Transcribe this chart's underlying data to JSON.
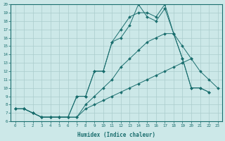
{
  "xlabel": "Humidex (Indice chaleur)",
  "bg_color": "#cce8e8",
  "line_color": "#1a6e6e",
  "grid_color": "#aacccc",
  "xlim": [
    -0.5,
    23.5
  ],
  "ylim": [
    6,
    20
  ],
  "xticks": [
    0,
    1,
    2,
    3,
    4,
    5,
    6,
    7,
    8,
    9,
    10,
    11,
    12,
    13,
    14,
    15,
    16,
    17,
    18,
    19,
    20,
    21,
    22,
    23
  ],
  "yticks": [
    6,
    7,
    8,
    9,
    10,
    11,
    12,
    13,
    14,
    15,
    16,
    17,
    18,
    19,
    20
  ],
  "lines": [
    {
      "x": [
        0,
        1,
        2,
        3,
        4,
        5,
        6,
        7,
        8,
        9,
        10,
        11,
        12,
        13,
        14,
        15,
        16,
        17,
        18,
        19,
        20
      ],
      "y": [
        7.5,
        7.5,
        7.0,
        6.5,
        6.5,
        6.5,
        6.5,
        6.5,
        7.5,
        8.0,
        8.5,
        9.0,
        9.5,
        10.0,
        10.5,
        11.0,
        11.5,
        12.0,
        12.5,
        13.0,
        13.5
      ]
    },
    {
      "x": [
        0,
        1,
        2,
        3,
        4,
        5,
        6,
        7,
        8,
        9,
        10,
        11,
        12,
        13,
        14,
        15,
        16,
        17,
        18,
        19,
        20,
        21,
        22,
        23
      ],
      "y": [
        7.5,
        7.5,
        7.0,
        6.5,
        6.5,
        6.5,
        6.5,
        6.5,
        8.0,
        9.0,
        10.0,
        11.0,
        12.5,
        13.5,
        14.5,
        15.5,
        16.0,
        16.5,
        16.5,
        15.0,
        13.5,
        12.0,
        11.0,
        10.0
      ]
    },
    {
      "x": [
        0,
        1,
        2,
        3,
        4,
        5,
        6,
        7,
        8,
        9,
        10,
        11,
        12,
        13,
        14,
        15,
        16,
        17,
        18,
        19,
        20,
        21,
        22,
        23
      ],
      "y": [
        7.5,
        7.5,
        7.0,
        6.5,
        6.5,
        6.5,
        6.5,
        9.0,
        9.0,
        12.0,
        12.0,
        15.5,
        17.0,
        18.5,
        19.0,
        19.0,
        18.5,
        20.0,
        16.5,
        13.5,
        10.0,
        10.0,
        9.5,
        null
      ]
    },
    {
      "x": [
        0,
        1,
        2,
        3,
        4,
        5,
        6,
        7,
        8,
        9,
        10,
        11,
        12,
        13,
        14,
        15,
        16,
        17,
        18,
        19,
        20,
        21,
        22,
        23
      ],
      "y": [
        7.5,
        7.5,
        7.0,
        6.5,
        6.5,
        6.5,
        6.5,
        9.0,
        9.0,
        12.0,
        12.0,
        15.5,
        16.0,
        17.5,
        20.0,
        18.5,
        18.0,
        19.5,
        16.5,
        13.5,
        10.0,
        10.0,
        9.5,
        null
      ]
    }
  ]
}
